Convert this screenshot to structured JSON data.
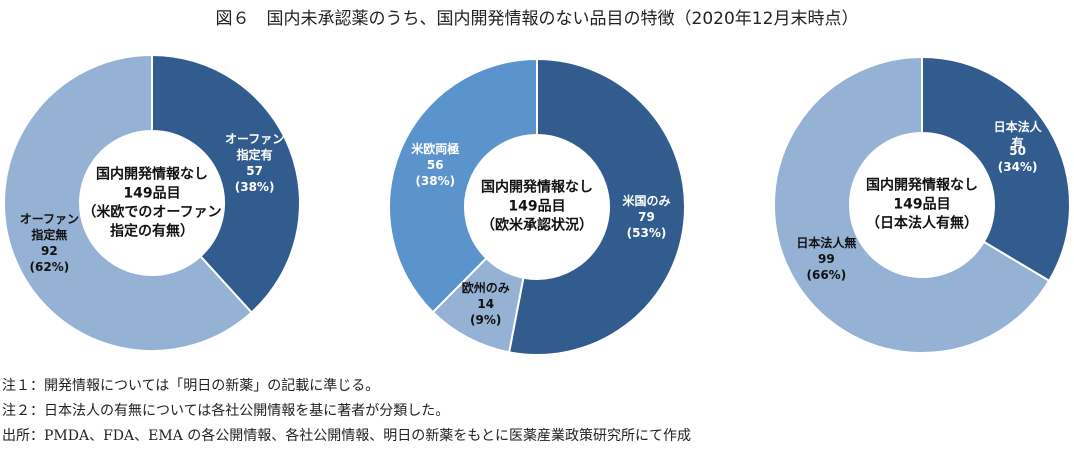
{
  "title": "図６　国内未承認薬のうち、国内開発情報のない品目の特徴（2020年12月末時点）",
  "chart_data": [
    {
      "type": "donut",
      "center_lines": [
        "国内開発情報なし",
        "149品目",
        "（米欧でのオーファン",
        "指定の有無）"
      ],
      "categories": [
        "オーファン\n指定有",
        "オーファン\n指定無"
      ],
      "values": [
        57,
        92
      ],
      "percent_labels": [
        "(38%)",
        "(62%)"
      ],
      "colors": [
        "#335c8e",
        "#95b1d4"
      ]
    },
    {
      "type": "donut",
      "center_lines": [
        "国内開発情報なし",
        "149品目",
        "（欧米承認状況）"
      ],
      "categories": [
        "米国のみ",
        "欧州のみ",
        "米欧両極"
      ],
      "values": [
        79,
        14,
        56
      ],
      "percent_labels": [
        "(53%)",
        "(9%)",
        "(38%)"
      ],
      "colors": [
        "#335c8e",
        "#95b1d4",
        "#5b93cc"
      ]
    },
    {
      "type": "donut",
      "center_lines": [
        "国内開発情報なし",
        "149品目",
        "（日本法人有無）"
      ],
      "categories": [
        "日本法人有",
        "日本法人無"
      ],
      "values": [
        50,
        99
      ],
      "percent_labels": [
        "(34%)",
        "(66%)"
      ],
      "colors": [
        "#335c8e",
        "#95b1d4"
      ]
    }
  ],
  "notes": [
    "注１：開発情報については「明日の新薬」の記載に準じる。",
    "注２：日本法人の有無については各社公開情報を基に著者が分類した。",
    "出所：PMDA、FDA、EMA の各公開情報、各社公開情報、明日の新薬をもとに医薬産業政策研究所にて作成"
  ]
}
